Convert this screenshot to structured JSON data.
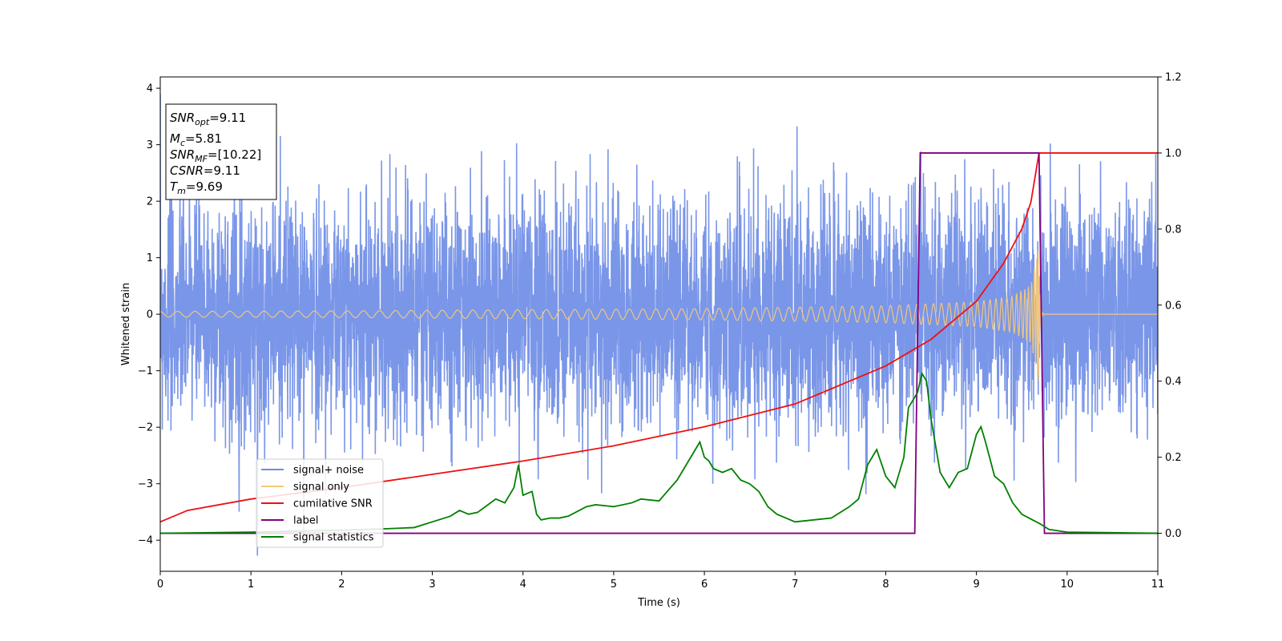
{
  "chart_data": {
    "type": "line",
    "xlabel": "Time (s)",
    "ylabel_left": "Whitened strain",
    "xlim": [
      0,
      11
    ],
    "ylim_left": [
      -4.55,
      4.2
    ],
    "ylim_right": [
      -0.1,
      1.2
    ],
    "x_ticks": [
      0,
      1,
      2,
      3,
      4,
      5,
      6,
      7,
      8,
      9,
      10,
      11
    ],
    "y_ticks_left": [
      -4,
      -3,
      -2,
      -1,
      0,
      1,
      2,
      3,
      4
    ],
    "y_ticks_right": [
      "0.0",
      "0.2",
      "0.4",
      "0.6",
      "0.8",
      "1.0",
      "1.2"
    ],
    "annotation": {
      "snr_opt": {
        "base": "SNR",
        "sub": "opt",
        "value": "=9.11"
      },
      "mc": {
        "base": "M",
        "sub": "c",
        "value": "=5.81"
      },
      "snr_mf": {
        "base": "SNR",
        "sub": "MF",
        "value": "=[10.22]"
      },
      "csnr": {
        "base": "CSNR",
        "value": "=9.11"
      },
      "tm": {
        "base": "T",
        "sub": "m",
        "value": "=9.69"
      }
    },
    "legend": {
      "placement": "lower-left",
      "entries": [
        {
          "label": "signal+ noise",
          "color": "#6b8be6"
        },
        {
          "label": "signal only",
          "color": "#f5c97a"
        },
        {
          "label": "cumilative SNR",
          "color": "#ee1111"
        },
        {
          "label": "label",
          "color": "#800080"
        },
        {
          "label": "signal statistics",
          "color": "#008000"
        }
      ]
    },
    "series": [
      {
        "name": "signal+ noise",
        "axis": "left",
        "kind": "noise",
        "color": "#6b8be6",
        "typical_std": 1.0,
        "peak_values": [
          3.8,
          -4.2,
          3.5,
          -3.9,
          3.6
        ]
      },
      {
        "name": "signal only",
        "axis": "left",
        "kind": "chirp",
        "color": "#f5c97a",
        "merger_time": 9.69,
        "envelope": {
          "x": [
            0,
            2,
            4,
            6,
            8,
            9,
            9.4,
            9.6,
            9.69
          ],
          "amplitude": [
            0.05,
            0.06,
            0.08,
            0.1,
            0.15,
            0.22,
            0.32,
            0.5,
            1.2
          ]
        }
      },
      {
        "name": "cumilative SNR",
        "axis": "right",
        "color": "#ee1111",
        "x": [
          0,
          0.3,
          1,
          2,
          3,
          4,
          5,
          6,
          7,
          8,
          8.5,
          9,
          9.3,
          9.5,
          9.6,
          9.69,
          11
        ],
        "y": [
          0.03,
          0.06,
          0.09,
          0.12,
          0.155,
          0.19,
          0.23,
          0.28,
          0.34,
          0.44,
          0.51,
          0.61,
          0.71,
          0.8,
          0.87,
          1.0,
          1.0
        ]
      },
      {
        "name": "label",
        "axis": "right",
        "color": "#800080",
        "x": [
          0,
          8.32,
          8.38,
          9.69,
          9.75,
          11
        ],
        "y": [
          0.0,
          0.0,
          1.0,
          1.0,
          0.0,
          0.0
        ]
      },
      {
        "name": "signal statistics",
        "axis": "right",
        "color": "#008000",
        "x": [
          0,
          1,
          2,
          2.5,
          2.8,
          3.0,
          3.2,
          3.3,
          3.4,
          3.5,
          3.7,
          3.8,
          3.9,
          3.95,
          4.0,
          4.1,
          4.15,
          4.2,
          4.3,
          4.4,
          4.5,
          4.7,
          4.8,
          5.0,
          5.2,
          5.3,
          5.5,
          5.7,
          5.9,
          5.95,
          6.0,
          6.05,
          6.1,
          6.2,
          6.3,
          6.4,
          6.5,
          6.6,
          6.7,
          6.8,
          7.0,
          7.2,
          7.4,
          7.6,
          7.7,
          7.8,
          7.9,
          8.0,
          8.1,
          8.2,
          8.25,
          8.3,
          8.35,
          8.4,
          8.45,
          8.5,
          8.6,
          8.7,
          8.8,
          8.9,
          9.0,
          9.05,
          9.1,
          9.2,
          9.3,
          9.4,
          9.5,
          9.7,
          9.8,
          10,
          11
        ],
        "y": [
          0.0,
          0.003,
          0.008,
          0.012,
          0.015,
          0.03,
          0.045,
          0.06,
          0.05,
          0.055,
          0.09,
          0.08,
          0.12,
          0.18,
          0.1,
          0.11,
          0.05,
          0.035,
          0.04,
          0.04,
          0.045,
          0.07,
          0.075,
          0.07,
          0.08,
          0.09,
          0.085,
          0.14,
          0.22,
          0.24,
          0.2,
          0.19,
          0.17,
          0.16,
          0.17,
          0.14,
          0.13,
          0.11,
          0.07,
          0.05,
          0.03,
          0.035,
          0.04,
          0.07,
          0.09,
          0.18,
          0.22,
          0.15,
          0.12,
          0.2,
          0.33,
          0.35,
          0.37,
          0.42,
          0.4,
          0.3,
          0.16,
          0.12,
          0.16,
          0.17,
          0.26,
          0.28,
          0.24,
          0.15,
          0.13,
          0.08,
          0.05,
          0.025,
          0.01,
          0.003,
          0.0
        ]
      }
    ]
  }
}
